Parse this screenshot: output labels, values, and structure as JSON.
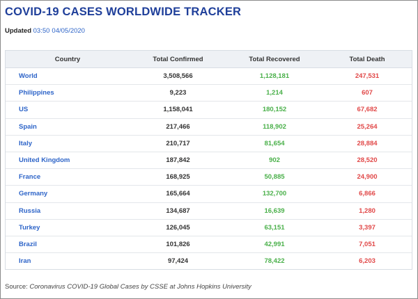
{
  "title": "COVID-19 CASES WORLDWIDE TRACKER",
  "updated": {
    "label": "Updated",
    "time": "03:50",
    "date": "04/05/2020"
  },
  "table": {
    "headers": [
      "Country",
      "Total Confirmed",
      "Total Recovered",
      "Total Death"
    ],
    "rows": [
      {
        "country": "World",
        "confirmed": "3,508,566",
        "recovered": "1,128,181",
        "death": "247,531"
      },
      {
        "country": "Philippines",
        "confirmed": "9,223",
        "recovered": "1,214",
        "death": "607"
      },
      {
        "country": "US",
        "confirmed": "1,158,041",
        "recovered": "180,152",
        "death": "67,682"
      },
      {
        "country": "Spain",
        "confirmed": "217,466",
        "recovered": "118,902",
        "death": "25,264"
      },
      {
        "country": "Italy",
        "confirmed": "210,717",
        "recovered": "81,654",
        "death": "28,884"
      },
      {
        "country": "United Kingdom",
        "confirmed": "187,842",
        "recovered": "902",
        "death": "28,520"
      },
      {
        "country": "France",
        "confirmed": "168,925",
        "recovered": "50,885",
        "death": "24,900"
      },
      {
        "country": "Germany",
        "confirmed": "165,664",
        "recovered": "132,700",
        "death": "6,866"
      },
      {
        "country": "Russia",
        "confirmed": "134,687",
        "recovered": "16,639",
        "death": "1,280"
      },
      {
        "country": "Turkey",
        "confirmed": "126,045",
        "recovered": "63,151",
        "death": "3,397"
      },
      {
        "country": "Brazil",
        "confirmed": "101,826",
        "recovered": "42,991",
        "death": "7,051"
      },
      {
        "country": "Iran",
        "confirmed": "97,424",
        "recovered": "78,422",
        "death": "6,203"
      }
    ]
  },
  "source": {
    "prefix": "Source:",
    "text": "Coronavirus COVID-19 Global Cases by CSSE at Johns Hopkins University"
  },
  "colors": {
    "title": "#1f3f9a",
    "country_link": "#2d64c8",
    "recovered": "#4ab04a",
    "death": "#e14848",
    "header_bg": "#eef1f5"
  }
}
